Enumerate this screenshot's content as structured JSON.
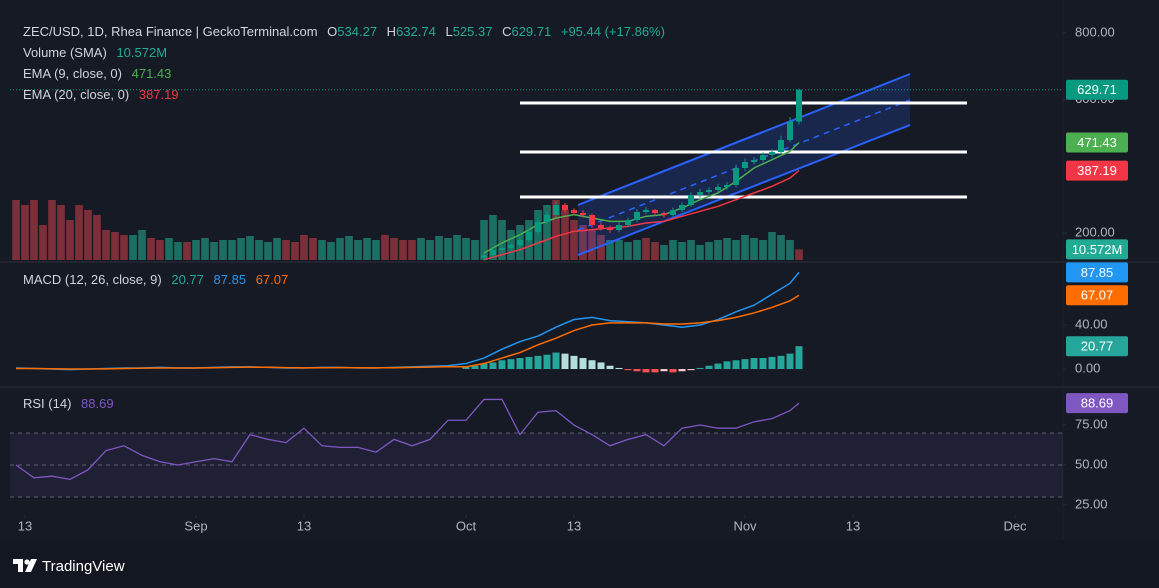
{
  "chart_data": [
    {
      "type": "candlestick",
      "title": "ZEC/USD, 1D, Rhea Finance | GeckoTerminal.com",
      "ohlc_letters": [
        "O",
        "H",
        "L",
        "C"
      ],
      "change_label": "+95.44 (+17.86%)",
      "up_color": "#089981",
      "down_color": "#f23645",
      "x": [
        52,
        53,
        54,
        55,
        56,
        57,
        58,
        59,
        60,
        61,
        62,
        63,
        64,
        65,
        66,
        67,
        68,
        69,
        70,
        71,
        72,
        73,
        74,
        75,
        76,
        77,
        78,
        79,
        80,
        81,
        82,
        83,
        84,
        85,
        86,
        87
      ],
      "open": [
        125,
        133,
        149,
        155,
        164,
        179,
        203,
        233,
        254,
        284,
        269,
        260,
        254,
        224,
        215,
        209,
        224,
        239,
        263,
        269,
        260,
        254,
        269,
        284,
        314,
        323,
        329,
        338,
        344,
        395,
        413,
        419,
        434,
        443,
        479,
        534.27
      ],
      "high": [
        140,
        156,
        162,
        170,
        186,
        212,
        245,
        262,
        295,
        290,
        275,
        268,
        258,
        232,
        222,
        232,
        246,
        272,
        278,
        272,
        264,
        276,
        292,
        322,
        333,
        337,
        348,
        352,
        405,
        424,
        428,
        442,
        452,
        492,
        548,
        632.74
      ],
      "low": [
        118,
        126,
        142,
        148,
        157,
        172,
        196,
        226,
        246,
        262,
        254,
        246,
        216,
        207,
        200,
        202,
        217,
        232,
        257,
        252,
        246,
        248,
        262,
        278,
        306,
        316,
        322,
        330,
        338,
        387,
        405,
        412,
        426,
        436,
        472,
        525.37
      ],
      "close": [
        133,
        149,
        155,
        164,
        179,
        203,
        233,
        254,
        284,
        269,
        260,
        254,
        224,
        215,
        209,
        224,
        239,
        263,
        269,
        260,
        254,
        269,
        284,
        314,
        323,
        329,
        338,
        344,
        395,
        413,
        419,
        434,
        443,
        479,
        534.27,
        629.71
      ],
      "series": [
        {
          "name": "EMA (9, close, 0)",
          "color": "#4caf50",
          "x": [
            52,
            54,
            56,
            58,
            60,
            62,
            64,
            66,
            68,
            70,
            72,
            74,
            76,
            78,
            80,
            82,
            84,
            86,
            87
          ],
          "values": [
            140,
            170,
            195,
            225,
            245,
            255,
            245,
            235,
            235,
            250,
            255,
            275,
            300,
            320,
            355,
            395,
            420,
            445,
            471.43
          ]
        },
        {
          "name": "EMA (20, close, 0)",
          "color": "#f23645",
          "x": [
            52,
            54,
            56,
            58,
            60,
            62,
            64,
            66,
            68,
            70,
            72,
            74,
            76,
            78,
            80,
            82,
            84,
            86,
            87
          ],
          "values": [
            120,
            135,
            150,
            170,
            190,
            205,
            210,
            215,
            220,
            230,
            235,
            250,
            265,
            280,
            300,
            320,
            340,
            365,
            387.19
          ]
        }
      ],
      "ylim": [
        119,
        854
      ],
      "yticks": [
        {
          "value": 800,
          "label": "800.00"
        },
        {
          "value": 600,
          "label": "600.00"
        },
        {
          "value": 200,
          "label": "200.00"
        }
      ]
    },
    {
      "type": "bar",
      "name": "Volume (SMA)",
      "last_label": "10.572M",
      "label_color": "#22ab94",
      "up_color": "#1d6e62",
      "down_color": "#7d2f39",
      "directions": "ddddddddddddduudduuduuuuuuuuuudddduuuuuuudddduuuuuuuuuuuuuuudddddduuuudduuuuuuuuuuuuuuu",
      "x": [
        0,
        1,
        2,
        3,
        4,
        5,
        6,
        7,
        8,
        9,
        10,
        11,
        12,
        13,
        14,
        15,
        16,
        17,
        18,
        19,
        20,
        21,
        22,
        23,
        24,
        25,
        26,
        27,
        28,
        29,
        30,
        31,
        32,
        33,
        34,
        35,
        36,
        37,
        38,
        39,
        40,
        41,
        42,
        43,
        44,
        45,
        46,
        47,
        48,
        49,
        50,
        51,
        52,
        53,
        54,
        55,
        56,
        57,
        58,
        59,
        60,
        61,
        62,
        63,
        64,
        65,
        66,
        67,
        68,
        69,
        70,
        71,
        72,
        73,
        74,
        75,
        76,
        77,
        78,
        79,
        80,
        81,
        82,
        83,
        84,
        85,
        86,
        87
      ],
      "values": [
        60,
        55,
        60,
        35,
        60,
        55,
        40,
        55,
        50,
        45,
        30,
        28,
        25,
        25,
        30,
        22,
        20,
        22,
        18,
        18,
        20,
        22,
        18,
        20,
        20,
        22,
        24,
        20,
        18,
        22,
        20,
        18,
        25,
        22,
        20,
        18,
        22,
        24,
        20,
        22,
        20,
        25,
        22,
        20,
        20,
        22,
        20,
        24,
        22,
        25,
        22,
        20,
        40,
        45,
        40,
        30,
        35,
        40,
        50,
        55,
        60,
        50,
        40,
        35,
        30,
        25,
        20,
        20,
        18,
        20,
        22,
        18,
        15,
        20,
        18,
        20,
        15,
        18,
        20,
        22,
        20,
        25,
        22,
        20,
        28,
        25,
        20,
        10.572
      ],
      "ylim": [
        0,
        245
      ]
    },
    {
      "type": "macd",
      "name": "MACD (12, 26, close, 9)",
      "x": [
        0,
        2,
        4,
        6,
        8,
        10,
        12,
        14,
        16,
        18,
        20,
        22,
        24,
        26,
        28,
        30,
        32,
        34,
        36,
        38,
        40,
        42,
        44,
        46,
        48,
        50,
        52,
        54,
        56,
        58,
        60,
        62,
        64,
        66,
        68,
        70,
        72,
        74,
        76,
        78,
        80,
        82,
        84,
        86,
        87
      ],
      "series": [
        {
          "color": "#2196f3",
          "values": [
            1,
            0.5,
            0,
            -0.5,
            0,
            0.5,
            1,
            1,
            1.5,
            1,
            1,
            1.5,
            2,
            2,
            1.5,
            1,
            1,
            1.5,
            1.5,
            1,
            1,
            1.5,
            2,
            2.5,
            3,
            5,
            10,
            18,
            25,
            30,
            38,
            45,
            47,
            44,
            43,
            42,
            40,
            38,
            40,
            45,
            52,
            58,
            68,
            78,
            87.85
          ]
        },
        {
          "color": "#ff6d00",
          "values": [
            0.5,
            0.5,
            0.3,
            0,
            0,
            0.2,
            0.5,
            0.8,
            1,
            1,
            1,
            1.2,
            1.5,
            1.7,
            1.6,
            1.3,
            1.1,
            1.2,
            1.3,
            1.2,
            1.1,
            1.2,
            1.5,
            1.8,
            2.2,
            2,
            5,
            10,
            15,
            22,
            28,
            35,
            40,
            42,
            42,
            42,
            41,
            41,
            42,
            44,
            47,
            51,
            56,
            62,
            67.07
          ]
        }
      ],
      "histogram": {
        "colors": [
          "#26a69a",
          "#b2dfdb",
          "#ff5252",
          "#ffcdd2"
        ],
        "x": [
          50,
          51,
          52,
          53,
          54,
          55,
          56,
          57,
          58,
          59,
          60,
          61,
          62,
          63,
          64,
          65,
          66,
          67,
          68,
          69,
          70,
          71,
          72,
          73,
          74,
          75,
          76,
          77,
          78,
          79,
          80,
          81,
          82,
          83,
          84,
          85,
          86,
          87
        ],
        "values": [
          2,
          3,
          5,
          6,
          8,
          9,
          10,
          11,
          12,
          13,
          15,
          14,
          12,
          10,
          8,
          6,
          3,
          1,
          -1,
          -2,
          -3,
          -3,
          -2,
          -3,
          -2,
          -1,
          1,
          3,
          5,
          7,
          8,
          9,
          10,
          10,
          11,
          12,
          14,
          20.77
        ]
      },
      "ylim": [
        -14.5,
        97.3
      ],
      "yticks": [
        {
          "value": 40,
          "label": "40.00"
        },
        {
          "value": 0,
          "label": "0.00"
        }
      ]
    },
    {
      "type": "line",
      "name": "RSI (14)",
      "color": "#7e57c2",
      "x": [
        0,
        2,
        4,
        6,
        8,
        10,
        12,
        14,
        16,
        18,
        20,
        22,
        24,
        26,
        28,
        30,
        32,
        34,
        36,
        38,
        40,
        42,
        44,
        46,
        48,
        50,
        52,
        54,
        56,
        58,
        60,
        62,
        64,
        66,
        68,
        70,
        72,
        74,
        76,
        78,
        80,
        82,
        84,
        86,
        87
      ],
      "values": [
        50,
        42,
        43,
        41,
        47,
        59,
        62,
        56,
        52,
        50,
        52,
        54,
        52,
        69,
        66,
        64,
        73,
        62,
        61,
        61,
        58,
        66,
        62,
        66,
        78,
        78,
        91,
        91,
        69,
        83,
        84,
        75,
        69,
        62,
        66,
        69,
        62,
        73,
        75,
        73,
        73,
        77,
        79,
        84,
        88.69
      ],
      "levels": [
        70,
        50,
        30
      ],
      "ylim": [
        20.6,
        96.9
      ],
      "yticks": [
        {
          "value": 75,
          "label": "75.00"
        },
        {
          "value": 50,
          "label": "50.00"
        },
        {
          "value": 25,
          "label": "25.00"
        }
      ],
      "xlim": [
        -0.667,
        116.333
      ],
      "xticks": [
        {
          "value": 1,
          "label": "13"
        },
        {
          "value": 20,
          "label": "Sep"
        },
        {
          "value": 32,
          "label": "13"
        },
        {
          "value": 50,
          "label": "Oct"
        },
        {
          "value": 62,
          "label": "13"
        },
        {
          "value": 81,
          "label": "Nov"
        },
        {
          "value": 93,
          "label": "13"
        },
        {
          "value": 111,
          "label": "Dec"
        }
      ]
    }
  ],
  "footer": {
    "brand": "TradingView"
  }
}
